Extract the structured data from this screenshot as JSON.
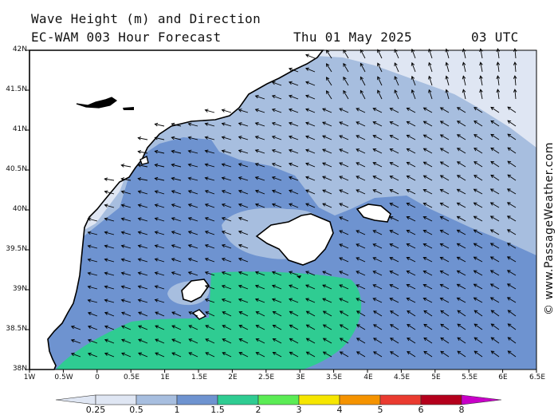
{
  "header": {
    "title": "Wave Height (m) and Direction",
    "subtitle": "EC-WAM 003 Hour Forecast",
    "date": "Thu 01 May 2025",
    "time": "03 UTC"
  },
  "watermark": "© www.PassageWeather.com",
  "map": {
    "lat_labels": [
      "42N",
      "41.5N",
      "41N",
      "40.5N",
      "40N",
      "39.5N",
      "39N",
      "38.5N",
      "38N"
    ],
    "lon_labels": [
      "1W",
      "0.5W",
      "0",
      "0.5E",
      "1E",
      "1.5E",
      "2E",
      "2.5E",
      "3E",
      "3.5E",
      "4E",
      "4.5E",
      "5E",
      "5.5E",
      "6E",
      "6.5E"
    ],
    "land_color": "#ffffff",
    "wave_colors": {
      "0.25-0.5": "#dfe6f3",
      "0.5-1": "#a7bedf",
      "1-1.5": "#6e93d0",
      "1.5-2": "#2fcc92"
    }
  },
  "colorbar": {
    "labels": [
      "0.25",
      "0.5",
      "1",
      "1.5",
      "2",
      "3",
      "4",
      "5",
      "6",
      "8"
    ],
    "colors": [
      "#dfe6f3",
      "#a7bedf",
      "#6e93d0",
      "#2fcc92",
      "#5bec55",
      "#f6e600",
      "#f59300",
      "#ea3b30",
      "#b4001c",
      "#c800c8"
    ]
  }
}
